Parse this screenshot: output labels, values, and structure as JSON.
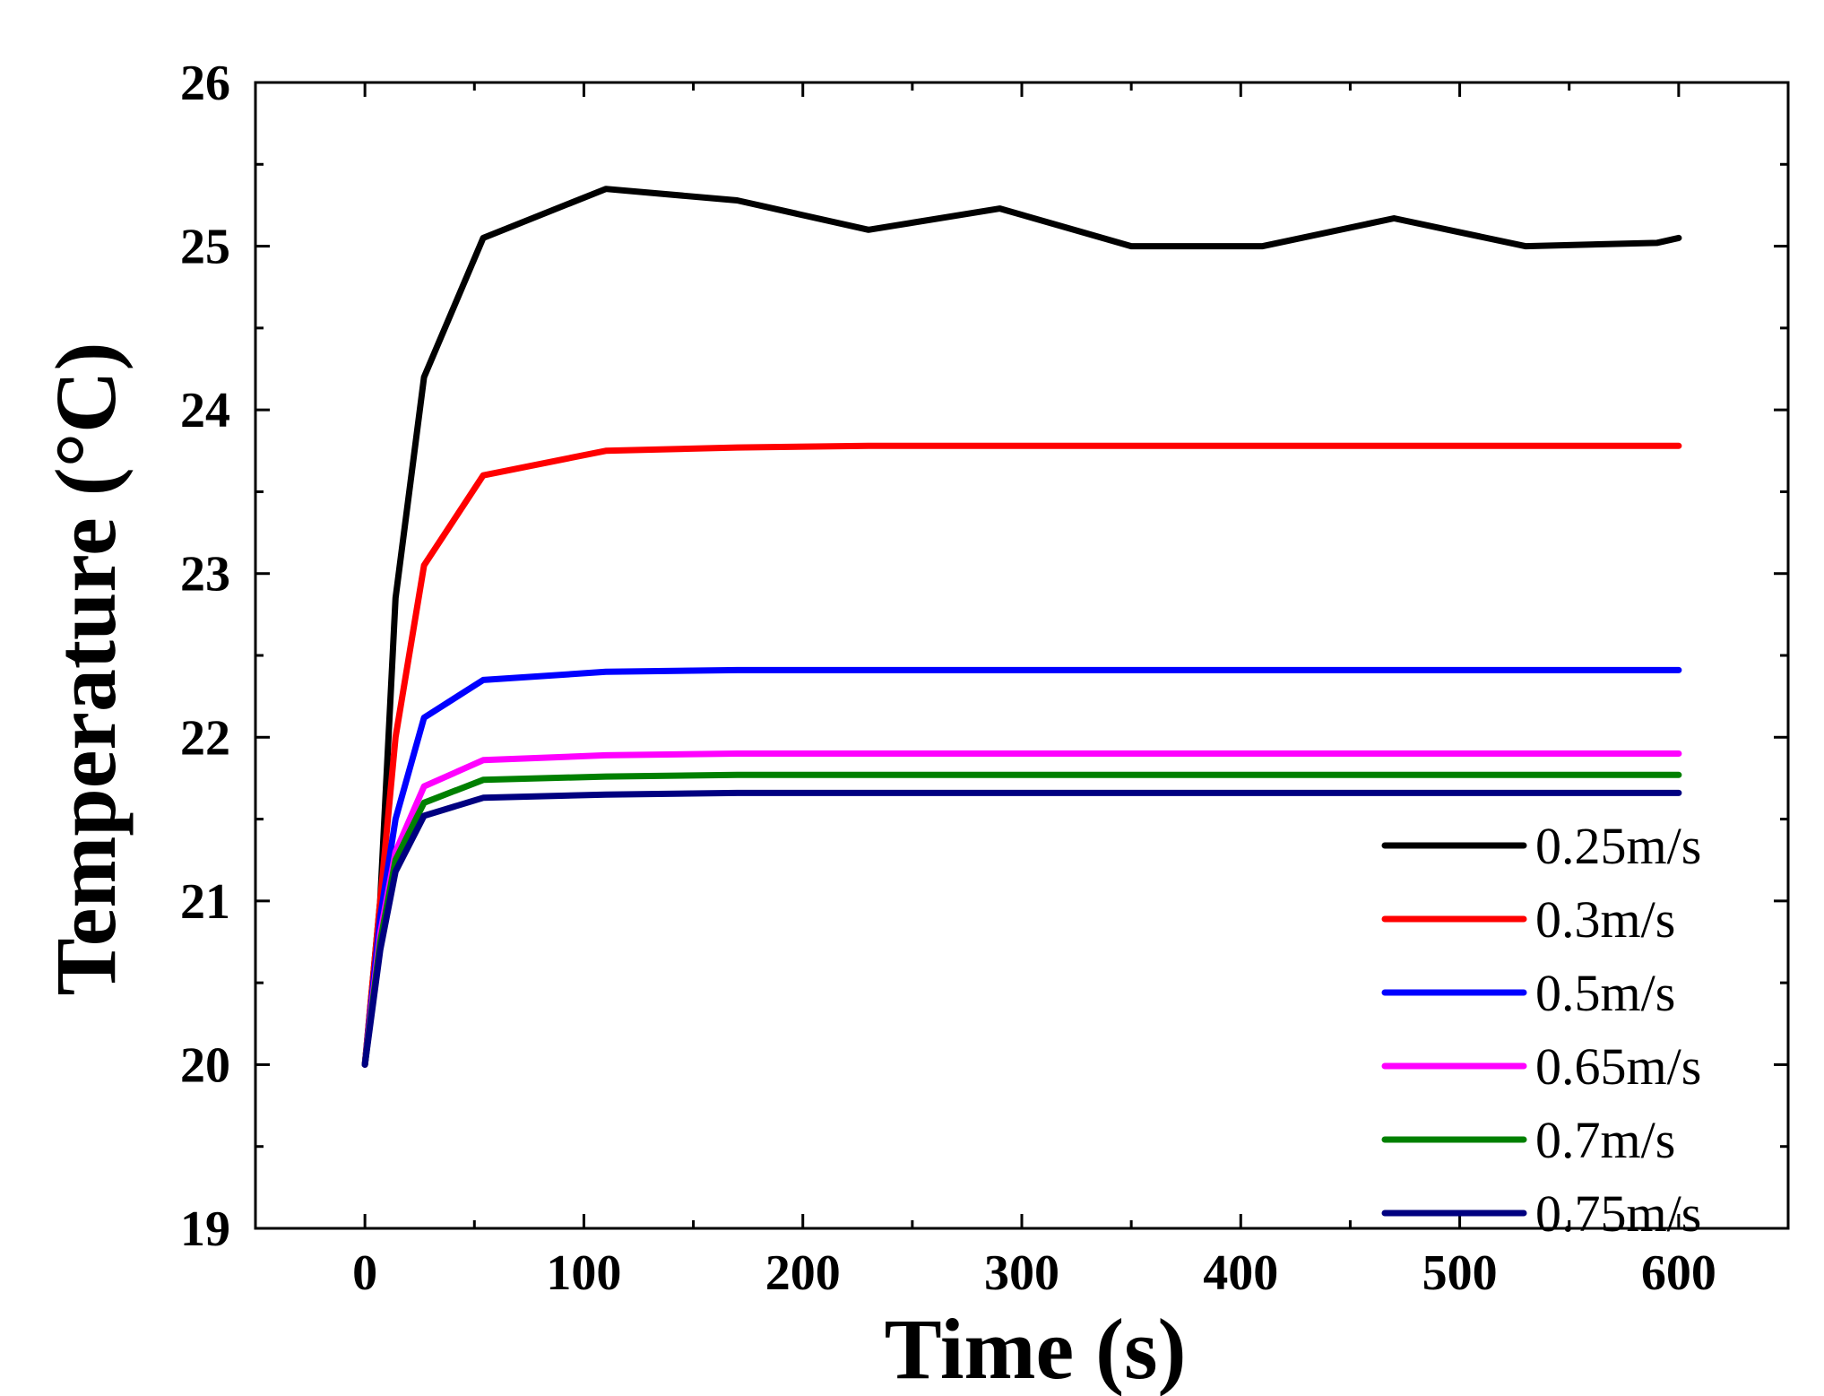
{
  "chart_data": {
    "type": "line",
    "title": "",
    "xlabel": "Time (s)",
    "ylabel": "Temperature (°C)",
    "xlim": [
      -50,
      650
    ],
    "ylim": [
      19,
      26
    ],
    "xticks": [
      0,
      100,
      200,
      300,
      400,
      500,
      600
    ],
    "yticks": [
      19,
      20,
      21,
      22,
      23,
      24,
      25,
      26
    ],
    "grid": false,
    "legend_position": "bottom-right",
    "series": [
      {
        "name": "0.25m/s",
        "color": "#000000",
        "points": [
          [
            0,
            20.0
          ],
          [
            7,
            21.0
          ],
          [
            14,
            22.85
          ],
          [
            27,
            24.2
          ],
          [
            54,
            25.05
          ],
          [
            110,
            25.35
          ],
          [
            170,
            25.28
          ],
          [
            230,
            25.1
          ],
          [
            290,
            25.23
          ],
          [
            350,
            25.0
          ],
          [
            410,
            25.0
          ],
          [
            470,
            25.17
          ],
          [
            530,
            25.0
          ],
          [
            590,
            25.02
          ],
          [
            600,
            25.05
          ]
        ]
      },
      {
        "name": "0.3m/s",
        "color": "#ff0000",
        "points": [
          [
            0,
            20.0
          ],
          [
            7,
            21.0
          ],
          [
            14,
            22.0
          ],
          [
            27,
            23.05
          ],
          [
            54,
            23.6
          ],
          [
            110,
            23.75
          ],
          [
            170,
            23.77
          ],
          [
            230,
            23.78
          ],
          [
            300,
            23.78
          ],
          [
            400,
            23.78
          ],
          [
            500,
            23.78
          ],
          [
            600,
            23.78
          ]
        ]
      },
      {
        "name": "0.5m/s",
        "color": "#0000ff",
        "points": [
          [
            0,
            20.0
          ],
          [
            7,
            20.9
          ],
          [
            14,
            21.5
          ],
          [
            27,
            22.12
          ],
          [
            54,
            22.35
          ],
          [
            110,
            22.4
          ],
          [
            170,
            22.41
          ],
          [
            300,
            22.41
          ],
          [
            400,
            22.41
          ],
          [
            500,
            22.41
          ],
          [
            600,
            22.41
          ]
        ]
      },
      {
        "name": "0.65m/s",
        "color": "#ff00ff",
        "points": [
          [
            0,
            20.0
          ],
          [
            7,
            20.8
          ],
          [
            14,
            21.3
          ],
          [
            27,
            21.7
          ],
          [
            54,
            21.86
          ],
          [
            110,
            21.89
          ],
          [
            170,
            21.9
          ],
          [
            300,
            21.9
          ],
          [
            400,
            21.9
          ],
          [
            500,
            21.9
          ],
          [
            600,
            21.9
          ]
        ]
      },
      {
        "name": "0.7m/s",
        "color": "#008000",
        "points": [
          [
            0,
            20.0
          ],
          [
            7,
            20.75
          ],
          [
            14,
            21.25
          ],
          [
            27,
            21.6
          ],
          [
            54,
            21.74
          ],
          [
            110,
            21.76
          ],
          [
            170,
            21.77
          ],
          [
            300,
            21.77
          ],
          [
            400,
            21.77
          ],
          [
            500,
            21.77
          ],
          [
            600,
            21.77
          ]
        ]
      },
      {
        "name": "0.75m/s",
        "color": "#000080",
        "points": [
          [
            0,
            20.0
          ],
          [
            7,
            20.7
          ],
          [
            14,
            21.18
          ],
          [
            27,
            21.52
          ],
          [
            54,
            21.63
          ],
          [
            110,
            21.65
          ],
          [
            170,
            21.66
          ],
          [
            300,
            21.66
          ],
          [
            400,
            21.66
          ],
          [
            500,
            21.66
          ],
          [
            600,
            21.66
          ]
        ]
      }
    ]
  }
}
